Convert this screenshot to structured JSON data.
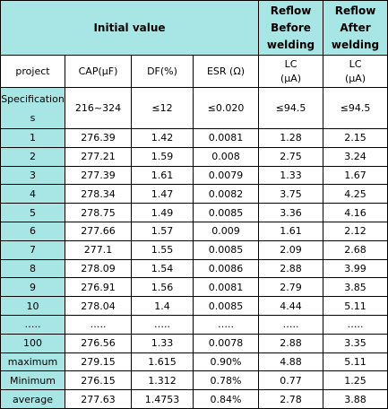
{
  "header": {
    "initial_value": "Initial value",
    "reflow_before_lines": [
      "Reflow",
      "Before",
      "welding"
    ],
    "reflow_after_lines": [
      "Reflow",
      "After",
      "welding"
    ]
  },
  "columns": {
    "project": "project",
    "cap": "CAP(μF)",
    "df": "DF(%)",
    "esr": "ESR (Ω)",
    "lc_before_lines": [
      "LC",
      "(μA)"
    ],
    "lc_after_lines": [
      "LC",
      "(μA)"
    ]
  },
  "specifications": {
    "label": "Specifications",
    "cap": "216~324",
    "df": "≤12",
    "esr": "≤0.020",
    "lc_before": "≤94.5",
    "lc_after": "≤94.5"
  },
  "rows": [
    [
      "1",
      "276.39",
      "1.42",
      "0.0081",
      "1.28",
      "2.15"
    ],
    [
      "2",
      "277.21",
      "1.59",
      "0.008",
      "2.75",
      "3.24"
    ],
    [
      "3",
      "277.39",
      "1.61",
      "0.0079",
      "1.33",
      "1.67"
    ],
    [
      "4",
      "278.34",
      "1.47",
      "0.0082",
      "3.75",
      "4.25"
    ],
    [
      "5",
      "278.75",
      "1.49",
      "0.0085",
      "3.36",
      "4.16"
    ],
    [
      "6",
      "277.66",
      "1.57",
      "0.009",
      "1.61",
      "2.12"
    ],
    [
      "7",
      "277.1",
      "1.55",
      "0.0085",
      "2.09",
      "2.68"
    ],
    [
      "8",
      "278.09",
      "1.54",
      "0.0086",
      "2.88",
      "3.99"
    ],
    [
      "9",
      "276.91",
      "1.56",
      "0.0081",
      "2.79",
      "3.85"
    ],
    [
      "10",
      "278.04",
      "1.4",
      "0.0085",
      "4.44",
      "5.11"
    ],
    [
      "…..",
      "…..",
      "…..",
      "…..",
      "…..",
      "….."
    ],
    [
      "100",
      "276.56",
      "1.33",
      "0.0078",
      "2.88",
      "3.35"
    ],
    [
      "maximum",
      "279.15",
      "1.615",
      "0.90%",
      "4.88",
      "5.11"
    ],
    [
      "Minimum",
      "276.15",
      "1.312",
      "0.78%",
      "0.77",
      "1.25"
    ],
    [
      "average",
      "277.63",
      "1.4753",
      "0.84%",
      "2.78",
      "3.88"
    ]
  ],
  "colors": {
    "header_fill": "#a8e6e6",
    "border": "#000000"
  }
}
